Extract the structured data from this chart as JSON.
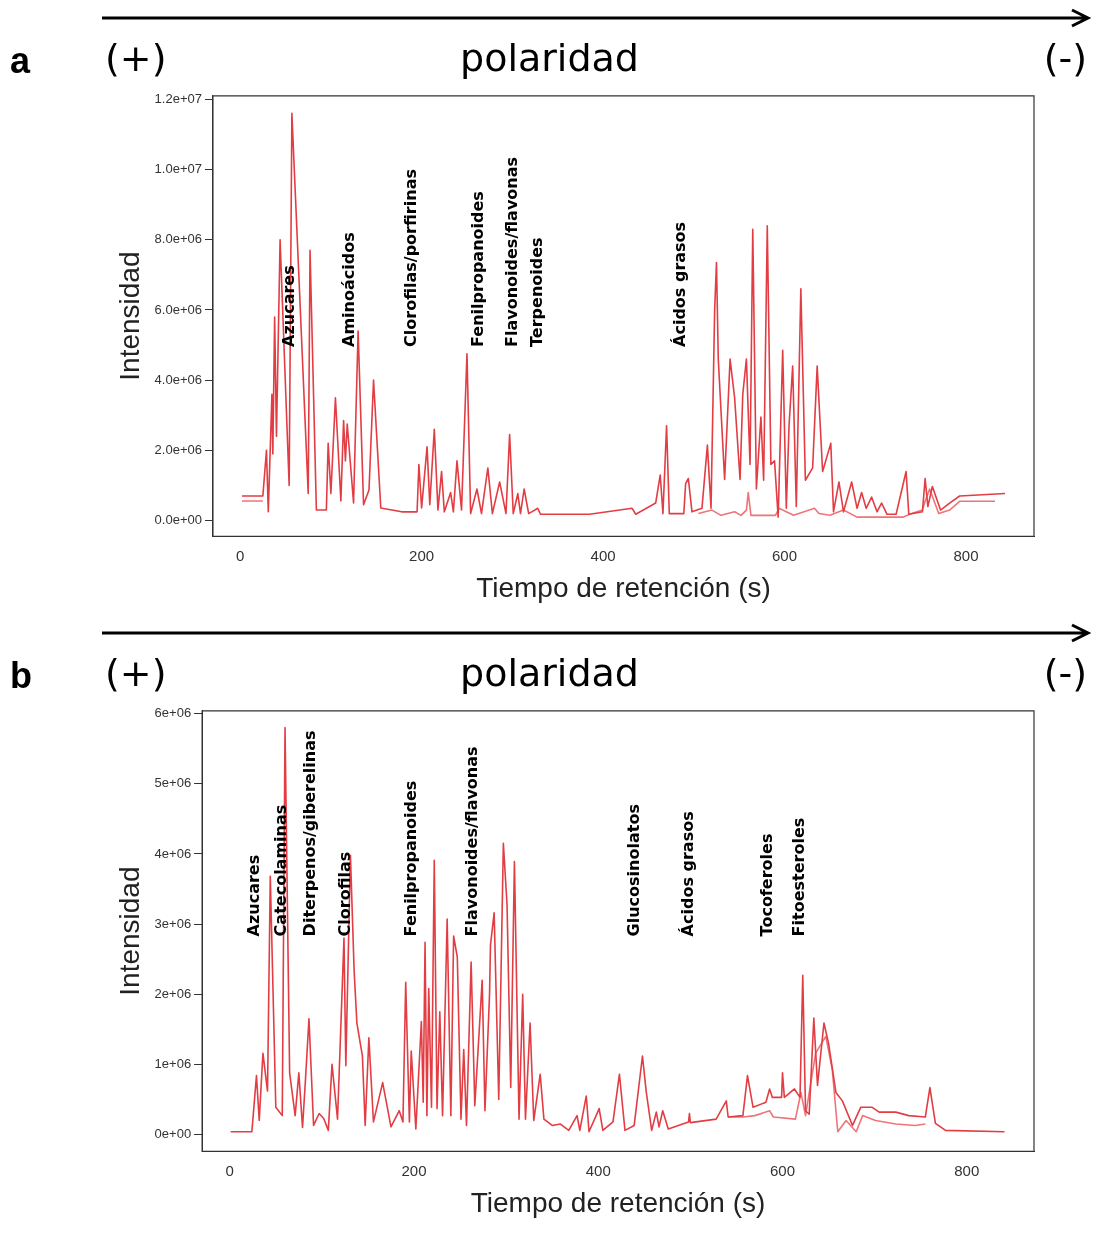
{
  "chart_data": [
    {
      "type": "line",
      "title": "a",
      "xlabel": "Tiempo de retención (s)",
      "ylabel": "Intensidad",
      "xlim": [
        -30,
        875
      ],
      "ylim": [
        -450000,
        12100000
      ],
      "xticks": [
        0,
        200,
        400,
        600,
        800
      ],
      "yticks": [
        {
          "value": 0,
          "label": "0.0e+00"
        },
        {
          "value": 2000000,
          "label": "2.0e+06"
        },
        {
          "value": 4000000,
          "label": "4.0e+06"
        },
        {
          "value": 6000000,
          "label": "6.0e+06"
        },
        {
          "value": 8000000,
          "label": "8.0e+06"
        },
        {
          "value": 10000000,
          "label": "1.0e+07"
        },
        {
          "value": 12000000,
          "label": "1.2e+07"
        }
      ],
      "legend": false,
      "annotations": [
        "(+)",
        "polaridad",
        "(-)",
        "Azucares",
        "Aminoácidos",
        "Clorofilas/porfirinas",
        "Fenilpropanoides",
        "Flavonoides/flavonas",
        "Terpenoides",
        "Ácidos grasos"
      ],
      "series": [
        {
          "color": "#e33d44",
          "x": [
            2,
            25,
            29,
            31,
            35,
            36,
            38,
            40,
            44,
            54,
            57,
            75,
            77,
            84,
            95,
            97,
            100,
            105,
            111,
            114,
            116,
            118,
            125,
            130,
            136,
            142,
            147,
            155,
            178,
            195,
            197,
            200,
            206,
            209,
            214,
            218,
            222,
            225,
            232,
            235,
            239,
            244,
            250,
            254,
            261,
            266,
            273,
            278,
            286,
            293,
            297,
            301,
            306,
            309,
            313,
            318,
            328,
            331,
            385,
            432,
            436,
            458,
            463,
            466,
            470,
            473,
            489,
            491,
            494,
            498,
            509,
            515,
            519,
            523,
            525,
            527,
            534,
            540,
            545,
            551,
            554,
            558,
            562,
            565,
            569,
            574,
            577,
            581,
            585,
            589,
            593,
            598,
            602,
            605,
            609,
            613,
            618,
            623,
            631,
            636,
            642,
            651,
            654,
            660,
            665,
            674,
            680,
            685,
            690,
            696,
            702,
            707,
            713,
            723,
            734,
            737,
            752,
            755,
            758,
            763,
            772,
            782,
            793,
            843
          ],
          "values": [
            700000,
            700000,
            2000000,
            250000,
            3600000,
            1900000,
            5800000,
            2400000,
            8000000,
            1000000,
            11600000,
            770000,
            7700000,
            300000,
            300000,
            2200000,
            770000,
            3500000,
            560000,
            2850000,
            1700000,
            2750000,
            500000,
            5400000,
            450000,
            870000,
            4000000,
            360000,
            250000,
            250000,
            1600000,
            360000,
            2100000,
            450000,
            2600000,
            300000,
            1400000,
            250000,
            800000,
            250000,
            1700000,
            300000,
            4750000,
            200000,
            900000,
            200000,
            1500000,
            200000,
            1100000,
            200000,
            2450000,
            200000,
            770000,
            200000,
            900000,
            200000,
            350000,
            180000,
            180000,
            350000,
            180000,
            500000,
            1300000,
            200000,
            2700000,
            200000,
            200000,
            1050000,
            1200000,
            250000,
            350000,
            2150000,
            350000,
            6000000,
            7350000,
            4600000,
            1170000,
            4600000,
            3500000,
            1170000,
            3600000,
            4600000,
            1600000,
            8300000,
            900000,
            2950000,
            1150000,
            8400000,
            1600000,
            1700000,
            100000,
            4850000,
            350000,
            2700000,
            4400000,
            400000,
            6600000,
            1150000,
            1500000,
            4400000,
            1400000,
            2200000,
            250000,
            1100000,
            250000,
            1100000,
            350000,
            800000,
            350000,
            670000,
            250000,
            500000,
            180000,
            180000,
            1400000,
            180000,
            250000,
            1200000,
            400000,
            970000,
            300000,
            500000,
            700000,
            770000
          ]
        },
        {
          "color": "#ee7479",
          "x": [
            2,
            25,
            26,
            505,
            520,
            530,
            545,
            552,
            558,
            560,
            563,
            590,
            594,
            610,
            633,
            638,
            650,
            665,
            680,
            705,
            731,
            740,
            752,
            755,
            760,
            770,
            782,
            793,
            832
          ],
          "values": [
            560000,
            560000,
            null,
            200000,
            300000,
            150000,
            250000,
            150000,
            300000,
            800000,
            150000,
            150000,
            350000,
            150000,
            350000,
            200000,
            150000,
            300000,
            100000,
            100000,
            100000,
            200000,
            300000,
            550000,
            900000,
            200000,
            300000,
            550000,
            550000
          ]
        }
      ]
    },
    {
      "type": "line",
      "title": "b",
      "xlabel": "Tiempo de retención (s)",
      "ylabel": "Intensidad",
      "xlim": [
        -30,
        873
      ],
      "ylim": [
        -240000,
        6040000
      ],
      "xticks": [
        0,
        200,
        400,
        600,
        800
      ],
      "yticks": [
        {
          "value": 0,
          "label": "0e+00"
        },
        {
          "value": 1000000,
          "label": "1e+06"
        },
        {
          "value": 2000000,
          "label": "2e+06"
        },
        {
          "value": 3000000,
          "label": "3e+06"
        },
        {
          "value": 4000000,
          "label": "4e+06"
        },
        {
          "value": 5000000,
          "label": "5e+06"
        },
        {
          "value": 6000000,
          "label": "6e+06"
        }
      ],
      "legend": false,
      "annotations": [
        "(+)",
        "polaridad",
        "(-)",
        "Azucares",
        "Catecolaminas",
        "Diterpenos/giberelinas",
        "Clorofilas",
        "Fenilpropanoides",
        "Flavonoides/flavonas",
        "Glucosinolatos",
        "Ácidos grasos",
        "Tocoferoles",
        "Fitoesteroles"
      ],
      "series": [
        {
          "color": "#e33d44",
          "x": [
            1,
            24,
            29,
            32,
            36,
            41,
            44,
            50,
            57,
            60,
            65,
            71,
            75,
            79,
            82,
            86,
            91,
            97,
            102,
            107,
            111,
            117,
            124,
            126,
            131,
            135,
            138,
            144,
            147,
            151,
            156,
            166,
            175,
            184,
            188,
            191,
            195,
            197,
            202,
            208,
            210,
            212,
            214,
            216,
            219,
            222,
            225,
            228,
            231,
            236,
            240,
            243,
            247,
            251,
            254,
            257,
            262,
            266,
            274,
            277,
            282,
            283,
            287,
            292,
            297,
            301,
            305,
            309,
            314,
            318,
            321,
            326,
            330,
            337,
            341,
            350,
            359,
            368,
            377,
            380,
            387,
            390,
            401,
            405,
            416,
            423,
            429,
            439,
            448,
            452,
            458,
            463,
            466,
            470,
            476,
            498,
            499,
            500,
            528,
            539,
            541,
            557,
            562,
            568,
            582,
            586,
            589,
            599,
            600,
            602,
            613,
            619,
            622,
            625,
            629,
            634,
            638,
            645,
            650,
            658,
            665,
            676,
            685,
            697,
            705,
            723,
            737,
            755,
            760,
            766,
            777,
            841
          ],
          "values": [
            40000,
            40000,
            840000,
            200000,
            1160000,
            620000,
            3680000,
            390000,
            270000,
            5800000,
            880000,
            270000,
            880000,
            100000,
            740000,
            1650000,
            130000,
            300000,
            230000,
            60000,
            1000000,
            220000,
            2800000,
            980000,
            3980000,
            2340000,
            1590000,
            1120000,
            130000,
            1380000,
            180000,
            740000,
            110000,
            340000,
            180000,
            2170000,
            180000,
            1190000,
            80000,
            1610000,
            460000,
            2740000,
            270000,
            2080000,
            390000,
            3910000,
            370000,
            1750000,
            270000,
            3070000,
            270000,
            2830000,
            2530000,
            220000,
            1210000,
            130000,
            2460000,
            410000,
            2200000,
            340000,
            2000000,
            2700000,
            3160000,
            500000,
            4150000,
            3280000,
            670000,
            3890000,
            220000,
            2000000,
            220000,
            1590000,
            200000,
            860000,
            220000,
            130000,
            150000,
            60000,
            270000,
            60000,
            550000,
            40000,
            370000,
            60000,
            180000,
            860000,
            60000,
            130000,
            1120000,
            620000,
            60000,
            320000,
            110000,
            340000,
            80000,
            180000,
            300000,
            170000,
            220000,
            480000,
            250000,
            270000,
            840000,
            390000,
            460000,
            650000,
            530000,
            530000,
            880000,
            530000,
            650000,
            530000,
            2270000,
            340000,
            290000,
            1660000,
            700000,
            1590000,
            1300000,
            600000,
            480000,
            130000,
            390000,
            390000,
            320000,
            320000,
            270000,
            250000,
            670000,
            160000,
            60000,
            40000
          ]
        },
        {
          "color": "#ee7479",
          "x": [
            541,
            557,
            570,
            586,
            590,
            614,
            620,
            625,
            636,
            647,
            654,
            660,
            669,
            680,
            687,
            701,
            723,
            744,
            755
          ],
          "values": [
            250000,
            250000,
            270000,
            340000,
            250000,
            220000,
            600000,
            270000,
            1160000,
            1400000,
            930000,
            40000,
            200000,
            40000,
            270000,
            200000,
            150000,
            130000,
            150000
          ]
        }
      ]
    }
  ]
}
